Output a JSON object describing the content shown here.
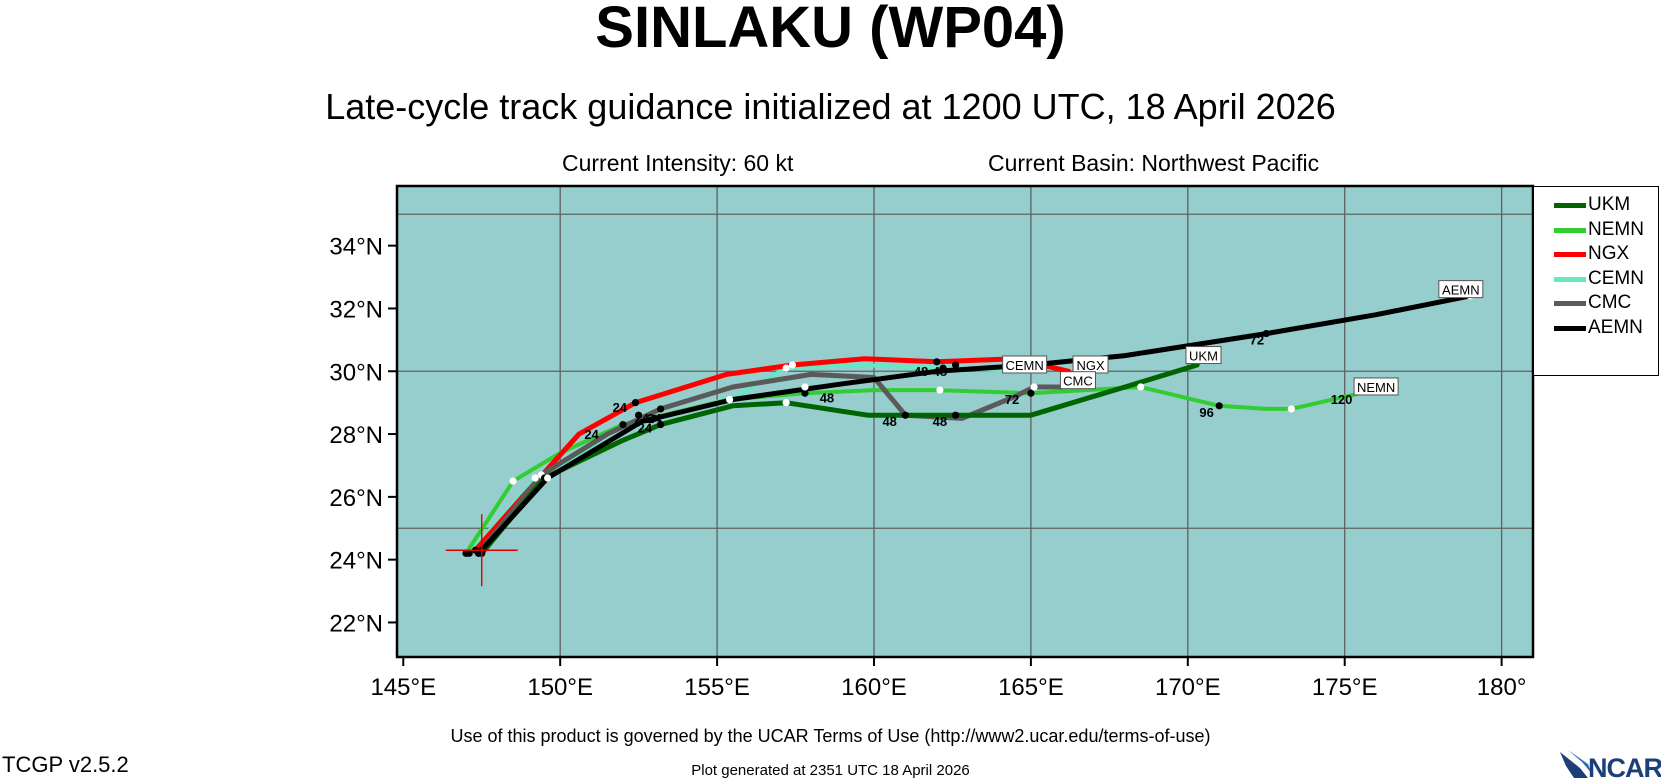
{
  "header": {
    "title": "SINLAKU (WP04)",
    "subtitle": "Late-cycle track guidance initialized at 1200 UTC, 18 April 2026",
    "intensity": "Current Intensity: 60 kt",
    "basin": "Current Basin: Northwest Pacific"
  },
  "footer": {
    "terms": "Use of this product is governed by the UCAR Terms of Use (http://www2.ucar.edu/terms-of-use)",
    "version": "TCGP v2.5.2",
    "generated": "Plot generated at 2351 UTC   18 April 2026",
    "logo_text": "NCAR"
  },
  "map": {
    "ocean_color": "#96CDCD",
    "lon_range": [
      144.8,
      181
    ],
    "lat_range": [
      20.9,
      35.9
    ],
    "lon_ticks": [
      {
        "value": 145,
        "label": "145°E"
      },
      {
        "value": 150,
        "label": "150°E"
      },
      {
        "value": 155,
        "label": "155°E"
      },
      {
        "value": 160,
        "label": "160°E"
      },
      {
        "value": 165,
        "label": "165°E"
      },
      {
        "value": 170,
        "label": "170°E"
      },
      {
        "value": 175,
        "label": "175°E"
      },
      {
        "value": 180,
        "label": "180°"
      }
    ],
    "lat_ticks": [
      {
        "value": 22,
        "label": "22°N"
      },
      {
        "value": 24,
        "label": "24°N"
      },
      {
        "value": 26,
        "label": "26°N"
      },
      {
        "value": 28,
        "label": "28°N"
      },
      {
        "value": 30,
        "label": "30°N"
      },
      {
        "value": 32,
        "label": "32°N"
      },
      {
        "value": 34,
        "label": "34°N"
      }
    ],
    "grid_lons": [
      150,
      155,
      160,
      165,
      170,
      175,
      180
    ],
    "grid_lats": [
      25,
      30,
      35
    ],
    "storm_position": {
      "lon": 147.5,
      "lat": 24.3
    }
  },
  "chart_data": {
    "type": "track-map",
    "series": [
      {
        "name": "UKM",
        "color": "#006400",
        "width": 5,
        "points": [
          [
            147.5,
            24.2
          ],
          [
            149.5,
            26.6
          ],
          [
            152.0,
            27.8
          ],
          [
            153.2,
            28.3
          ],
          [
            155.5,
            28.9
          ],
          [
            157.2,
            29.0
          ],
          [
            159.8,
            28.6
          ],
          [
            162.6,
            28.6
          ],
          [
            165.0,
            28.6
          ],
          [
            168.0,
            29.5
          ],
          [
            170.3,
            30.2
          ]
        ],
        "markers": [
          [
            147.5,
            24.2,
            "k"
          ],
          [
            149.5,
            26.6,
            "k"
          ],
          [
            153.2,
            28.3,
            "k"
          ],
          [
            157.2,
            29.0,
            "w"
          ],
          [
            162.6,
            28.6,
            "k"
          ]
        ]
      },
      {
        "name": "NEMN",
        "color": "#32CD32",
        "width": 4,
        "points": [
          [
            147.0,
            24.2
          ],
          [
            148.5,
            26.5
          ],
          [
            150.0,
            27.4
          ],
          [
            152.0,
            28.3
          ],
          [
            155.4,
            29.1
          ],
          [
            157.8,
            29.3
          ],
          [
            160.0,
            29.4
          ],
          [
            162.0,
            29.4
          ],
          [
            165.0,
            29.3
          ],
          [
            168.5,
            29.5
          ],
          [
            171.0,
            28.9
          ],
          [
            172.5,
            28.8
          ],
          [
            173.3,
            28.8
          ],
          [
            175.5,
            29.3
          ]
        ],
        "markers": [
          [
            147.0,
            24.2,
            "k"
          ],
          [
            148.5,
            26.5,
            "w"
          ],
          [
            152.0,
            28.3,
            "k"
          ],
          [
            155.4,
            29.1,
            "w"
          ],
          [
            157.8,
            29.3,
            "k"
          ],
          [
            162.1,
            29.4,
            "w"
          ],
          [
            165.0,
            29.3,
            "k"
          ],
          [
            168.5,
            29.5,
            "w"
          ],
          [
            171.0,
            28.9,
            "k"
          ],
          [
            173.3,
            28.8,
            "w"
          ]
        ]
      },
      {
        "name": "NGX",
        "color": "#FF0000",
        "width": 5,
        "points": [
          [
            147.3,
            24.3
          ],
          [
            148.8,
            26.0
          ],
          [
            150.6,
            28.0
          ],
          [
            152.4,
            29.0
          ],
          [
            155.3,
            29.9
          ],
          [
            157.4,
            30.2
          ],
          [
            159.7,
            30.4
          ],
          [
            162.0,
            30.3
          ],
          [
            164.5,
            30.4
          ],
          [
            166.2,
            30.0
          ]
        ],
        "markers": [
          [
            147.3,
            24.3,
            "k"
          ],
          [
            152.4,
            29.0,
            "k"
          ],
          [
            157.4,
            30.2,
            "w"
          ],
          [
            162.0,
            30.3,
            "k"
          ]
        ]
      },
      {
        "name": "CEMN",
        "color": "#66E8C2",
        "width": 4,
        "points": [
          [
            147.1,
            24.2
          ],
          [
            149.2,
            26.6
          ],
          [
            152.5,
            28.3
          ],
          [
            155.6,
            29.2
          ],
          [
            157.2,
            30.1
          ],
          [
            159.5,
            30.2
          ],
          [
            162.2,
            30.1
          ],
          [
            165.0,
            30.0
          ]
        ],
        "markers": [
          [
            147.1,
            24.2,
            "k"
          ],
          [
            149.2,
            26.6,
            "w"
          ],
          [
            152.5,
            28.6,
            "k"
          ],
          [
            157.2,
            30.1,
            "w"
          ],
          [
            162.2,
            30.1,
            "k"
          ]
        ]
      },
      {
        "name": "CMC",
        "color": "#5A5A5A",
        "width": 5,
        "points": [
          [
            147.4,
            24.2
          ],
          [
            149.4,
            26.7
          ],
          [
            151.5,
            28.0
          ],
          [
            153.2,
            28.8
          ],
          [
            155.5,
            29.5
          ],
          [
            158.0,
            29.9
          ],
          [
            160.0,
            29.8
          ],
          [
            161.0,
            28.6
          ],
          [
            162.8,
            28.5
          ],
          [
            164.5,
            29.2
          ],
          [
            165.1,
            29.5
          ],
          [
            166.0,
            29.5
          ]
        ],
        "markers": [
          [
            147.4,
            24.2,
            "k"
          ],
          [
            149.4,
            26.7,
            "w"
          ],
          [
            153.2,
            28.8,
            "k"
          ],
          [
            157.8,
            29.5,
            "w"
          ],
          [
            161.0,
            28.6,
            "k"
          ],
          [
            165.1,
            29.5,
            "w"
          ]
        ]
      },
      {
        "name": "AEMN",
        "color": "#000000",
        "width": 5,
        "points": [
          [
            147.5,
            24.3
          ],
          [
            149.6,
            26.6
          ],
          [
            152.6,
            28.4
          ],
          [
            155.5,
            29.1
          ],
          [
            159.0,
            29.6
          ],
          [
            162.0,
            30.0
          ],
          [
            165.0,
            30.2
          ],
          [
            168.0,
            30.5
          ],
          [
            172.5,
            31.2
          ],
          [
            176.0,
            31.8
          ],
          [
            179.0,
            32.4
          ]
        ],
        "markers": [
          [
            147.5,
            24.3,
            "k"
          ],
          [
            149.6,
            26.6,
            "w"
          ],
          [
            153.0,
            28.5,
            "k"
          ],
          [
            162.6,
            30.2,
            "k"
          ],
          [
            172.5,
            31.2,
            "k"
          ],
          [
            179.0,
            32.4,
            "w"
          ]
        ]
      }
    ],
    "tags": [
      {
        "text": "AEMN",
        "lon": 178.7,
        "lat": 32.6
      },
      {
        "text": "UKM",
        "lon": 170.5,
        "lat": 30.5
      },
      {
        "text": "NEMN",
        "lon": 176.0,
        "lat": 29.5
      },
      {
        "text": "CEMN",
        "lon": 164.8,
        "lat": 30.2
      },
      {
        "text": "NGX",
        "lon": 166.9,
        "lat": 30.2
      },
      {
        "text": "CMC",
        "lon": 166.5,
        "lat": 29.7
      }
    ],
    "hour_labels": [
      {
        "text": "24",
        "lon": 151.9,
        "lat": 28.7
      },
      {
        "text": "24",
        "lon": 152.6,
        "lat": 28.35
      },
      {
        "text": "24",
        "lon": 153.0,
        "lat": 28.35
      },
      {
        "text": "24",
        "lon": 151.0,
        "lat": 27.85
      },
      {
        "text": "24",
        "lon": 152.7,
        "lat": 28.05
      },
      {
        "text": "48",
        "lon": 158.5,
        "lat": 29.0
      },
      {
        "text": "48",
        "lon": 160.5,
        "lat": 28.25
      },
      {
        "text": "48",
        "lon": 162.1,
        "lat": 28.25
      },
      {
        "text": "48",
        "lon": 161.5,
        "lat": 29.85
      },
      {
        "text": "48",
        "lon": 162.1,
        "lat": 29.85
      },
      {
        "text": "72",
        "lon": 164.4,
        "lat": 28.95
      },
      {
        "text": "72",
        "lon": 172.2,
        "lat": 30.85
      },
      {
        "text": "96",
        "lon": 170.6,
        "lat": 28.55
      },
      {
        "text": "120",
        "lon": 174.9,
        "lat": 28.95
      }
    ]
  }
}
